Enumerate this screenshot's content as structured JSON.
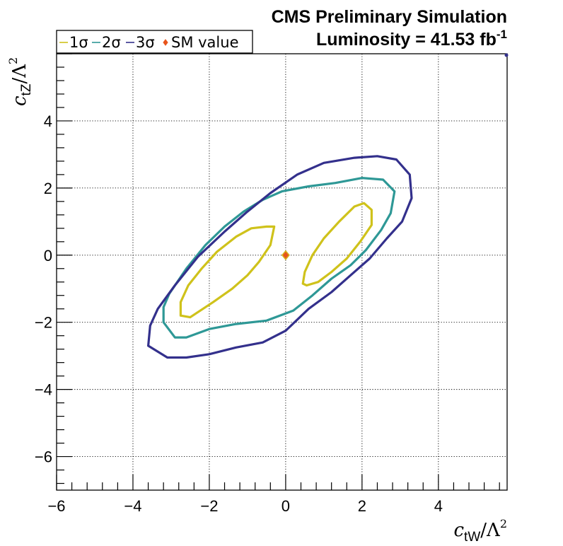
{
  "chart_data": {
    "type": "line",
    "title": "CMS Preliminary Simulation",
    "subtitle_prefix": "Luminosity = 41.53 fb",
    "subtitle_sup": "-1",
    "xlabel": {
      "base": "c",
      "sub": "tW",
      "mid": "/Λ",
      "sup": "2"
    },
    "ylabel": {
      "base": "c",
      "sub": "tZ",
      "mid": "/Λ",
      "sup": "2"
    },
    "xlim": [
      -6,
      5.8
    ],
    "ylim": [
      -7,
      6.0
    ],
    "x_ticks": [
      -6,
      -4,
      -2,
      0,
      2,
      4
    ],
    "y_ticks": [
      -6,
      -4,
      -2,
      0,
      2,
      4
    ],
    "x_tick_labels": [
      "−6",
      "−4",
      "−2",
      "0",
      "2",
      "4"
    ],
    "y_tick_labels": [
      "−6",
      "−4",
      "−2",
      "0",
      "2",
      "4"
    ],
    "grid": true,
    "legend_position": "top-left",
    "legend": [
      {
        "label": "1σ",
        "color": "#cfc21b",
        "marker": "line"
      },
      {
        "label": "2σ",
        "color": "#2e9896",
        "marker": "line"
      },
      {
        "label": "3σ",
        "color": "#33308c",
        "marker": "line"
      },
      {
        "label": "SM value",
        "color": "#e8541c",
        "marker": "diamond"
      }
    ],
    "series": [
      {
        "name": "1σ",
        "color": "#cfc21b",
        "contours": [
          [
            [
              -0.5,
              0.85
            ],
            [
              -0.3,
              0.85
            ],
            [
              -0.4,
              0.3
            ],
            [
              -0.7,
              -0.2
            ],
            [
              -1.0,
              -0.6
            ],
            [
              -1.4,
              -1.0
            ],
            [
              -1.9,
              -1.4
            ],
            [
              -2.5,
              -1.85
            ],
            [
              -2.75,
              -1.8
            ],
            [
              -2.75,
              -1.4
            ],
            [
              -2.55,
              -0.9
            ],
            [
              -2.2,
              -0.4
            ],
            [
              -1.8,
              0.1
            ],
            [
              -1.3,
              0.55
            ],
            [
              -0.9,
              0.8
            ],
            [
              -0.5,
              0.85
            ]
          ],
          [
            [
              0.55,
              -0.9
            ],
            [
              0.85,
              -0.8
            ],
            [
              1.2,
              -0.5
            ],
            [
              1.6,
              -0.1
            ],
            [
              1.95,
              0.4
            ],
            [
              2.25,
              0.9
            ],
            [
              2.25,
              1.35
            ],
            [
              2.05,
              1.55
            ],
            [
              1.8,
              1.45
            ],
            [
              1.4,
              1.0
            ],
            [
              1.0,
              0.5
            ],
            [
              0.7,
              0.0
            ],
            [
              0.5,
              -0.5
            ],
            [
              0.45,
              -0.85
            ],
            [
              0.55,
              -0.9
            ]
          ]
        ]
      },
      {
        "name": "2σ",
        "color": "#2e9896",
        "contours": [
          [
            [
              -3.2,
              -2.0
            ],
            [
              -3.2,
              -1.55
            ],
            [
              -3.05,
              -1.15
            ],
            [
              -2.6,
              -0.4
            ],
            [
              -2.1,
              0.3
            ],
            [
              -1.6,
              0.85
            ],
            [
              -1.1,
              1.3
            ],
            [
              -0.6,
              1.65
            ],
            [
              -0.1,
              1.9
            ],
            [
              0.6,
              2.05
            ],
            [
              1.3,
              2.15
            ],
            [
              2.0,
              2.3
            ],
            [
              2.55,
              2.25
            ],
            [
              2.85,
              1.9
            ],
            [
              2.75,
              1.25
            ],
            [
              2.5,
              0.75
            ],
            [
              2.1,
              0.15
            ],
            [
              1.7,
              -0.3
            ],
            [
              1.2,
              -0.7
            ],
            [
              0.7,
              -1.2
            ],
            [
              0.2,
              -1.65
            ],
            [
              -0.5,
              -1.95
            ],
            [
              -1.3,
              -2.05
            ],
            [
              -2.0,
              -2.2
            ],
            [
              -2.6,
              -2.45
            ],
            [
              -2.9,
              -2.45
            ],
            [
              -3.2,
              -2.0
            ]
          ]
        ]
      },
      {
        "name": "3σ",
        "color": "#33308c",
        "contours": [
          [
            [
              -3.6,
              -2.7
            ],
            [
              -3.55,
              -2.1
            ],
            [
              -3.35,
              -1.6
            ],
            [
              -2.9,
              -0.9
            ],
            [
              -2.3,
              -0.05
            ],
            [
              -1.6,
              0.7
            ],
            [
              -1.0,
              1.3
            ],
            [
              -0.4,
              1.85
            ],
            [
              0.3,
              2.4
            ],
            [
              1.0,
              2.75
            ],
            [
              1.8,
              2.9
            ],
            [
              2.4,
              2.95
            ],
            [
              2.9,
              2.85
            ],
            [
              3.25,
              2.4
            ],
            [
              3.3,
              1.7
            ],
            [
              3.05,
              1.0
            ],
            [
              2.65,
              0.5
            ],
            [
              2.2,
              -0.1
            ],
            [
              1.7,
              -0.6
            ],
            [
              1.2,
              -1.1
            ],
            [
              0.6,
              -1.6
            ],
            [
              0.0,
              -2.25
            ],
            [
              -0.6,
              -2.6
            ],
            [
              -1.3,
              -2.75
            ],
            [
              -2.0,
              -2.95
            ],
            [
              -2.6,
              -3.05
            ],
            [
              -3.1,
              -3.05
            ],
            [
              -3.6,
              -2.7
            ]
          ]
        ]
      }
    ],
    "sm_point": {
      "name": "SM value",
      "x": 0,
      "y": 0,
      "color": "#e8541c",
      "outline": "#d4b21a"
    }
  }
}
